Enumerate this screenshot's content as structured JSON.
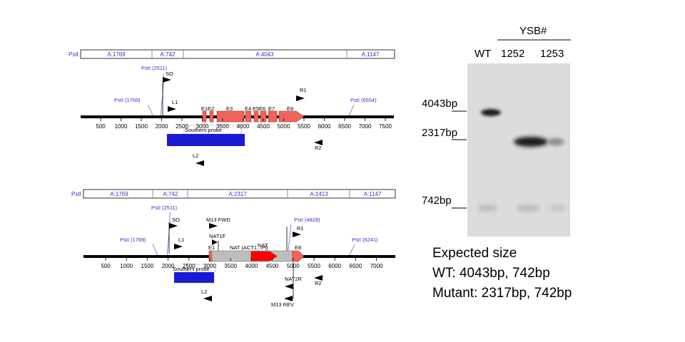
{
  "map_top": {
    "pst_frag_label": "PstI",
    "fragments": [
      "A:1769",
      "A:742",
      "A:4043",
      "A:1147"
    ],
    "sites": [
      {
        "label": "PstI (1769)"
      },
      {
        "label": "PstI (2511)"
      },
      {
        "label": "PstI (6554)"
      }
    ],
    "exons": [
      "E1",
      "E2",
      "E3",
      "E4",
      "E5",
      "E6",
      "E7",
      "E8"
    ],
    "primers": {
      "so": "SO",
      "l1": "L1",
      "r1": "R1",
      "r2": "R2",
      "l2": "L2"
    },
    "probe_label": "Southern probe",
    "ruler": [
      "500",
      "1000",
      "1500",
      "2000",
      "2500",
      "3000",
      "3500",
      "4000",
      "4500",
      "5000",
      "5500",
      "6000",
      "6500",
      "7000",
      "7500"
    ]
  },
  "map_bottom": {
    "pst_frag_label": "PstI",
    "fragments": [
      "A:1769",
      "A:742",
      "A:2317",
      "A:1413",
      "A:1147"
    ],
    "sites": [
      {
        "label": "PstI (1769)"
      },
      {
        "label": "PstI (2511)"
      },
      {
        "label": "PstI (4828)"
      },
      {
        "label": "PstI (6241)"
      }
    ],
    "exons": [
      "E1",
      "E8"
    ],
    "primers": {
      "so": "SO",
      "l1": "L1",
      "m13fwd": "M13 FWD",
      "nat1f": "NAT1F",
      "r1": "R1",
      "nat2r": "NAT2R",
      "m13rev": "M13 REV",
      "r2": "R2",
      "l2": "L2"
    },
    "cassette_label": "NAT (ACT1...Pt)",
    "nat_label": "NAT",
    "probe_label": "Southern probe",
    "ruler": [
      "500",
      "1000",
      "1500",
      "2000",
      "2500",
      "3000",
      "3500",
      "4000",
      "4500",
      "5000",
      "5500",
      "6000",
      "6500",
      "7000"
    ]
  },
  "gel": {
    "strain_header": "YSB#",
    "lanes": [
      "WT",
      "1252",
      "1253"
    ],
    "markers": [
      "4043bp",
      "2317bp",
      "742bp"
    ],
    "colors": {
      "background": "#dcdcdc",
      "band": "#1a1a1a"
    }
  },
  "summary": {
    "title": "Expected size",
    "wt": "WT: 4043bp, 742bp",
    "mutant": "Mutant: 2317bp, 742bp"
  },
  "colors": {
    "exon": "#f0645a",
    "exon_stroke": "#a23028",
    "probe": "#1a1ad6",
    "nat": "#ff0000",
    "cassette": "#bdbdbd",
    "site": "#4040d8"
  }
}
